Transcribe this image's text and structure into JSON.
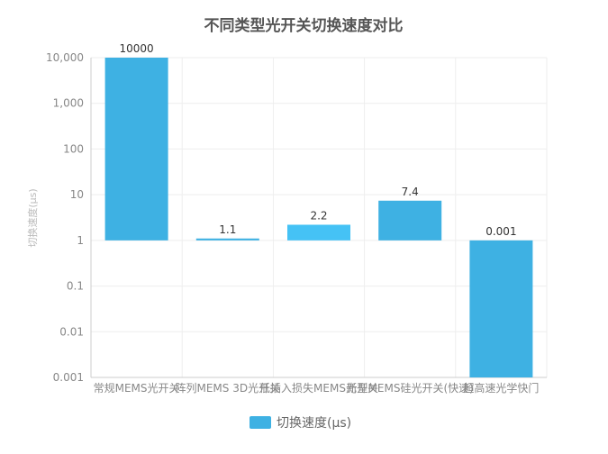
{
  "chart_data": {
    "type": "bar",
    "title": "不同类型光开关切换速度对比",
    "ylabel": "切换速度(μs)",
    "xlabel": "",
    "yscale": "log",
    "ylim": [
      0.001,
      10000
    ],
    "yticks": [
      "0.001",
      "0.01",
      "0.1",
      "1",
      "10",
      "100",
      "1,000",
      "10,000"
    ],
    "categories": [
      "常规MEMS光开关",
      "阵列MEMS 3D光开关",
      "低插入损失MEMS光开关",
      "新型MEMS硅光开关(快速)",
      "超高速光学快门"
    ],
    "series": [
      {
        "name": "切换速度(μs)",
        "values": [
          10000,
          1.1,
          2.2,
          7.4,
          0.001
        ],
        "labels": [
          "10000",
          "1.1",
          "2.2",
          "7.4",
          "0.001"
        ]
      }
    ],
    "colors": [
      "#3eb1e3",
      "#3eb1e3",
      "#45c2f5",
      "#3eb1e3",
      "#3eb1e3"
    ],
    "legend": "bottom",
    "grid": true
  }
}
